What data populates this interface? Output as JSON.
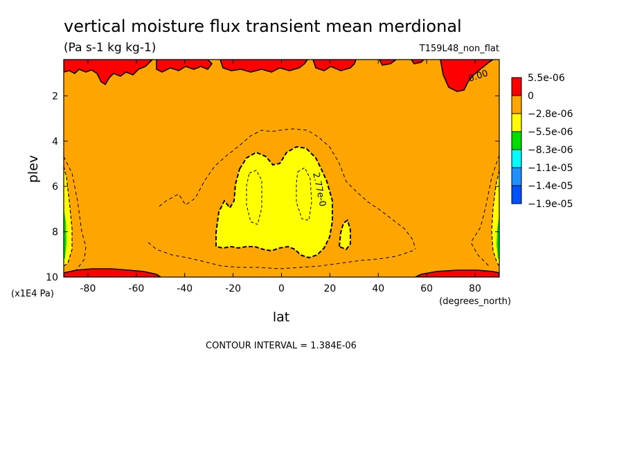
{
  "chart_data": {
    "type": "heatmap",
    "title": "vertical moisture flux transient mean merdional",
    "units": "(Pa s-1 kg kg-1)",
    "experiment": "T159L48_non_flat",
    "xlabel": "lat",
    "ylabel": "plev",
    "x_units": "(degrees_north)",
    "y_units": "(x1E4 Pa)",
    "xlim": [
      -90,
      90
    ],
    "ylim": [
      10,
      0.4
    ],
    "x_ticks": [
      -80,
      -60,
      -40,
      -20,
      0,
      20,
      40,
      60,
      80
    ],
    "y_ticks": [
      2,
      4,
      6,
      8,
      10
    ],
    "contour_interval_text": "CONTOUR INTERVAL = 1.384E-06",
    "contour_labels": [
      "0.00",
      "2.77e-0"
    ],
    "colorbar": {
      "tick_labels": [
        "5.5e-06",
        "0",
        "−2.8e-06",
        "−5.5e-06",
        "−8.3e-06",
        "−1.1e-05",
        "−1.4e-05",
        "−1.9e-05"
      ],
      "colors": [
        "#ff0000",
        "#ffa500",
        "#ffff00",
        "#00dd00",
        "#00ffff",
        "#1e90ff",
        "#0050ff"
      ]
    },
    "field_regions": [
      {
        "level": "positive",
        "color": "#ff0000",
        "area": "top edge near 0.5e4 Pa, patchy across all latitudes"
      },
      {
        "level": "positive",
        "color": "#ff0000",
        "area": "near 70N, 0.5-1.5e4 Pa"
      },
      {
        "level": "positive",
        "color": "#ff0000",
        "area": "bottom edge near 10e4 Pa, 90S-50S and 55N-90N"
      },
      {
        "level": "0 to -2.8e-06",
        "color": "#ffa500",
        "area": "background"
      },
      {
        "level": "-2.8e-06 to -5.5e-06",
        "color": "#ffff00",
        "area": "25S-20N, 4-8.5e4 Pa"
      },
      {
        "level": "-5.5e-06 to -1.9e-05",
        "color": "#00dd00",
        "area": "near 90S and 90N, 6-9.5e4 Pa"
      }
    ]
  }
}
